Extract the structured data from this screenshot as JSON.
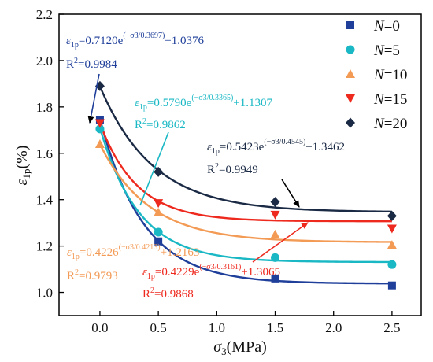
{
  "chart_data": {
    "type": "scatter",
    "xlabel": "σ3(MPa)",
    "ylabel": "ε1p(%)",
    "xlim": [
      -0.35,
      2.75
    ],
    "ylim": [
      0.9,
      2.2
    ],
    "x_ticks": [
      "0.0",
      "0.5",
      "1.0",
      "1.5",
      "2.0",
      "2.5"
    ],
    "y_ticks": [
      "1.0",
      "1.2",
      "1.4",
      "1.6",
      "1.8",
      "2.0",
      "2.2"
    ],
    "legend_position": "top-right",
    "series": [
      {
        "name": "N=0",
        "legend_prefix": "N",
        "legend_value": "=0",
        "color": "#1f3f9a",
        "marker": "square",
        "x": [
          0,
          0.5,
          1.5,
          2.5
        ],
        "y": [
          1.745,
          1.22,
          1.06,
          1.03
        ],
        "fit": {
          "A": 0.712,
          "t": 0.3697,
          "y0": 1.0376
        },
        "eq_coeff": "0.7120",
        "eq_exp": "(−σ3/0.3697)",
        "eq_const": "+1.0376",
        "eq_exp_prefix": "e",
        "r2": "=0.9984"
      },
      {
        "name": "N=5",
        "legend_prefix": "N",
        "legend_value": "=5",
        "color": "#19b8c4",
        "marker": "circle",
        "x": [
          0,
          0.5,
          1.5,
          2.5
        ],
        "y": [
          1.705,
          1.26,
          1.15,
          1.12
        ],
        "fit": {
          "A": 0.579,
          "t": 0.3365,
          "y0": 1.1307
        },
        "eq_coeff": "0.5790",
        "eq_exp": "(−σ3/0.3365)",
        "eq_const": "+1.1307",
        "eq_exp_prefix": "e",
        "r2": "=0.9862"
      },
      {
        "name": "N=10",
        "legend_prefix": "N",
        "legend_value": "=10",
        "color": "#f39a55",
        "marker": "triangle-up",
        "x": [
          0,
          0.5,
          1.5,
          2.5
        ],
        "y": [
          1.64,
          1.345,
          1.25,
          1.205
        ],
        "fit": {
          "A": 0.4226,
          "t": 0.4213,
          "y0": 1.2163
        },
        "eq_coeff": "0.4226",
        "eq_exp": "(−σ3/0.4213)",
        "eq_const": "+1.2163",
        "eq_exp_prefix": "",
        "r2": "=0.9793"
      },
      {
        "name": "N=15",
        "legend_prefix": "N",
        "legend_value": "=15",
        "color": "#ee2a1f",
        "marker": "triangle-down",
        "x": [
          0,
          0.5,
          1.5,
          2.5
        ],
        "y": [
          1.73,
          1.385,
          1.335,
          1.275
        ],
        "fit": {
          "A": 0.4229,
          "t": 0.3161,
          "y0": 1.3065
        },
        "eq_coeff": "0.4229",
        "eq_exp": "(−σ3/0.3161)",
        "eq_const": "+1.3065",
        "eq_exp_prefix": "e",
        "r2": "=0.9868"
      },
      {
        "name": "N=20",
        "legend_prefix": "N",
        "legend_value": "=20",
        "color": "#1b2a44",
        "marker": "diamond",
        "x": [
          0,
          0.5,
          1.5,
          2.5
        ],
        "y": [
          1.89,
          1.52,
          1.39,
          1.33
        ],
        "fit": {
          "A": 0.5423,
          "t": 0.4545,
          "y0": 1.3462
        },
        "eq_coeff": "0.5423",
        "eq_exp": "(−σ3/0.4545)",
        "eq_const": "+1.3462",
        "eq_exp_prefix": "e",
        "r2": "=0.9949"
      }
    ]
  }
}
